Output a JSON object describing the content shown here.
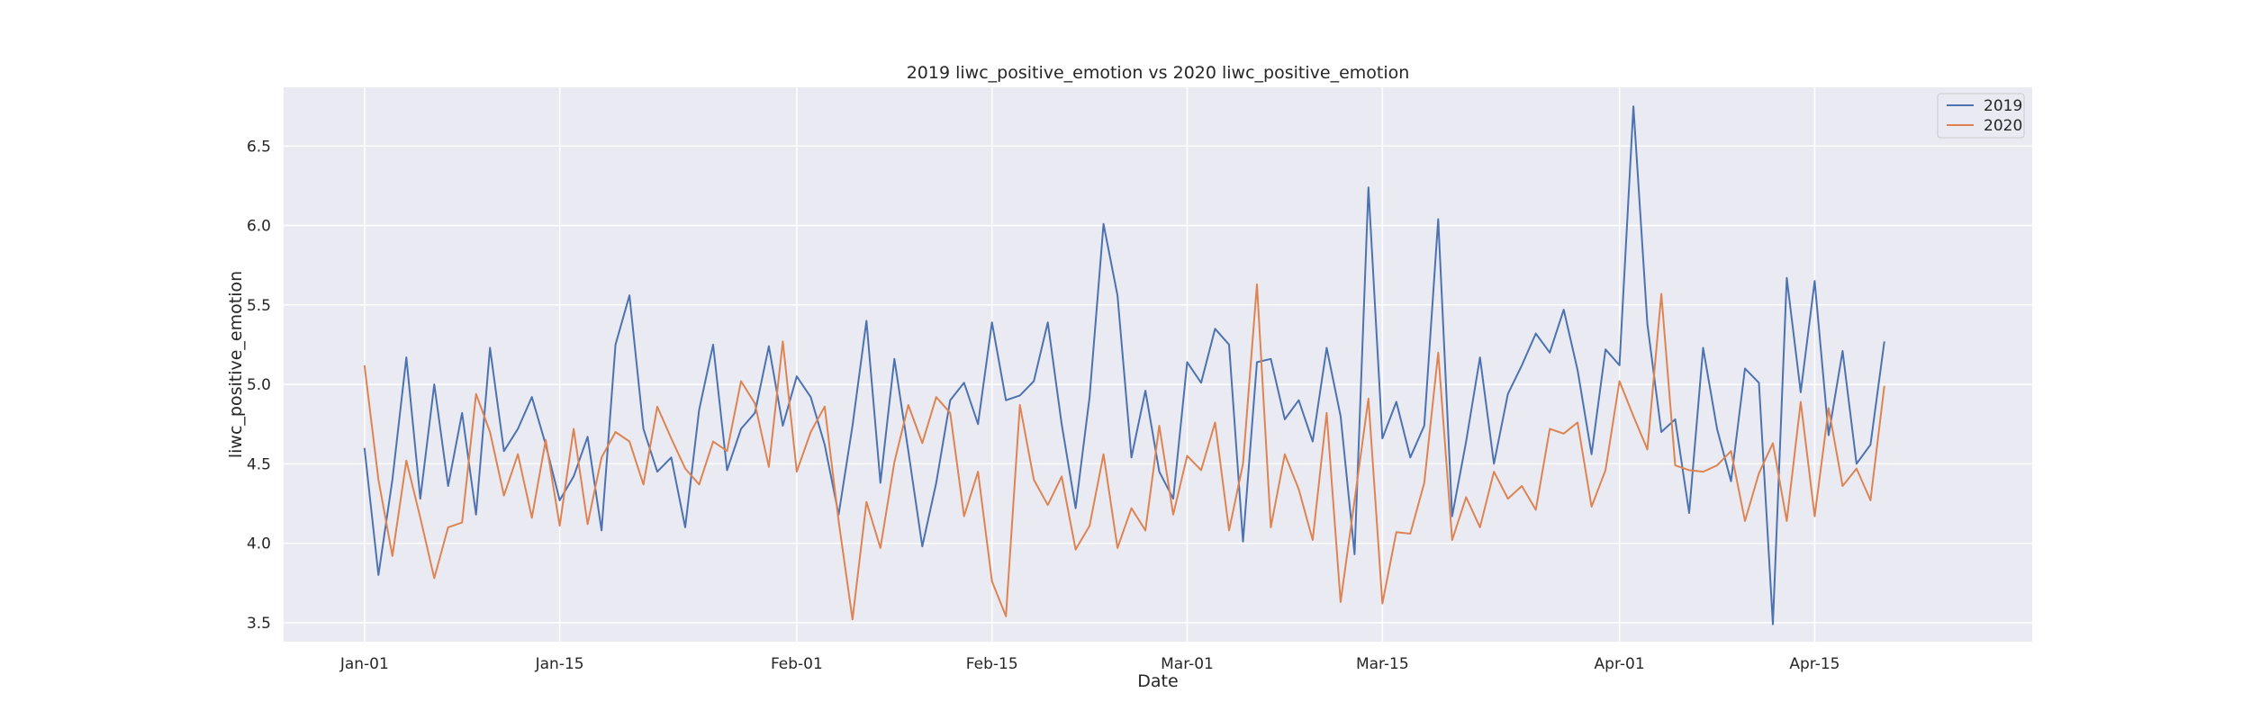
{
  "chart_data": {
    "type": "line",
    "title": "2019 liwc_positive_emotion vs 2020 liwc_positive_emotion",
    "xlabel": "Date",
    "ylabel": "liwc_positive_emotion",
    "x_start_day": 0,
    "xlim_days": [
      -5.8,
      119.6
    ],
    "ylim": [
      3.38,
      6.87
    ],
    "x_ticks": [
      {
        "day": 0,
        "label": "Jan-01"
      },
      {
        "day": 14,
        "label": "Jan-15"
      },
      {
        "day": 31,
        "label": "Feb-01"
      },
      {
        "day": 45,
        "label": "Feb-15"
      },
      {
        "day": 59,
        "label": "Mar-01"
      },
      {
        "day": 73,
        "label": "Mar-15"
      },
      {
        "day": 90,
        "label": "Apr-01"
      },
      {
        "day": 104,
        "label": "Apr-15"
      }
    ],
    "y_ticks": [
      {
        "value": 3.5,
        "label": "3.5"
      },
      {
        "value": 4.0,
        "label": "4.0"
      },
      {
        "value": 4.5,
        "label": "4.5"
      },
      {
        "value": 5.0,
        "label": "5.0"
      },
      {
        "value": 5.5,
        "label": "5.5"
      },
      {
        "value": 6.0,
        "label": "6.0"
      },
      {
        "value": 6.5,
        "label": "6.5"
      }
    ],
    "grid": true,
    "legend_position": "top-right",
    "series": [
      {
        "name": "2019",
        "color": "#4c72b0",
        "values": [
          4.6,
          3.8,
          4.4,
          5.17,
          4.28,
          5.0,
          4.36,
          4.82,
          4.18,
          5.23,
          4.58,
          4.72,
          4.92,
          4.62,
          4.27,
          4.42,
          4.67,
          4.08,
          5.25,
          5.56,
          4.72,
          4.45,
          4.54,
          4.1,
          4.84,
          5.25,
          4.46,
          4.72,
          4.82,
          5.24,
          4.74,
          5.05,
          4.92,
          4.62,
          4.18,
          4.74,
          5.4,
          4.38,
          5.16,
          4.58,
          3.98,
          4.38,
          4.9,
          5.01,
          4.75,
          5.39,
          4.9,
          4.93,
          5.02,
          5.39,
          4.75,
          4.22,
          4.92,
          6.01,
          5.56,
          4.54,
          4.96,
          4.45,
          4.28,
          5.14,
          5.01,
          5.35,
          5.25,
          4.01,
          5.14,
          5.16,
          4.78,
          4.9,
          4.64,
          5.23,
          4.8,
          3.93,
          6.24,
          4.66,
          4.89,
          4.54,
          4.74,
          6.04,
          4.17,
          4.64,
          5.17,
          4.5,
          4.94,
          5.12,
          5.32,
          5.2,
          5.47,
          5.09,
          4.56,
          5.22,
          5.12,
          6.75,
          5.38,
          4.7,
          4.78,
          4.19,
          5.23,
          4.72,
          4.39,
          5.1,
          5.01,
          3.49,
          5.67,
          4.95,
          5.65,
          4.68,
          5.21,
          4.5,
          4.62,
          5.27
        ]
      },
      {
        "name": "2020",
        "color": "#dd8452",
        "values": [
          5.12,
          4.4,
          3.92,
          4.52,
          4.16,
          3.78,
          4.1,
          4.13,
          4.94,
          4.7,
          4.3,
          4.56,
          4.16,
          4.65,
          4.11,
          4.72,
          4.12,
          4.54,
          4.7,
          4.64,
          4.37,
          4.86,
          4.66,
          4.47,
          4.37,
          4.64,
          4.58,
          5.02,
          4.88,
          4.48,
          5.27,
          4.45,
          4.7,
          4.86,
          4.14,
          3.52,
          4.26,
          3.97,
          4.51,
          4.87,
          4.63,
          4.92,
          4.82,
          4.17,
          4.45,
          3.76,
          3.54,
          4.87,
          4.4,
          4.24,
          4.42,
          3.96,
          4.11,
          4.56,
          3.97,
          4.22,
          4.08,
          4.74,
          4.18,
          4.55,
          4.46,
          4.76,
          4.08,
          4.5,
          5.63,
          4.1,
          4.56,
          4.34,
          4.02,
          4.82,
          3.63,
          4.27,
          4.91,
          3.62,
          4.07,
          4.06,
          4.38,
          5.2,
          4.02,
          4.29,
          4.1,
          4.45,
          4.28,
          4.36,
          4.21,
          4.72,
          4.69,
          4.76,
          4.23,
          4.46,
          5.02,
          4.8,
          4.59,
          5.57,
          4.49,
          4.46,
          4.45,
          4.49,
          4.58,
          4.14,
          4.44,
          4.63,
          4.14,
          4.89,
          4.17,
          4.85,
          4.36,
          4.47,
          4.27,
          4.99
        ]
      }
    ]
  }
}
